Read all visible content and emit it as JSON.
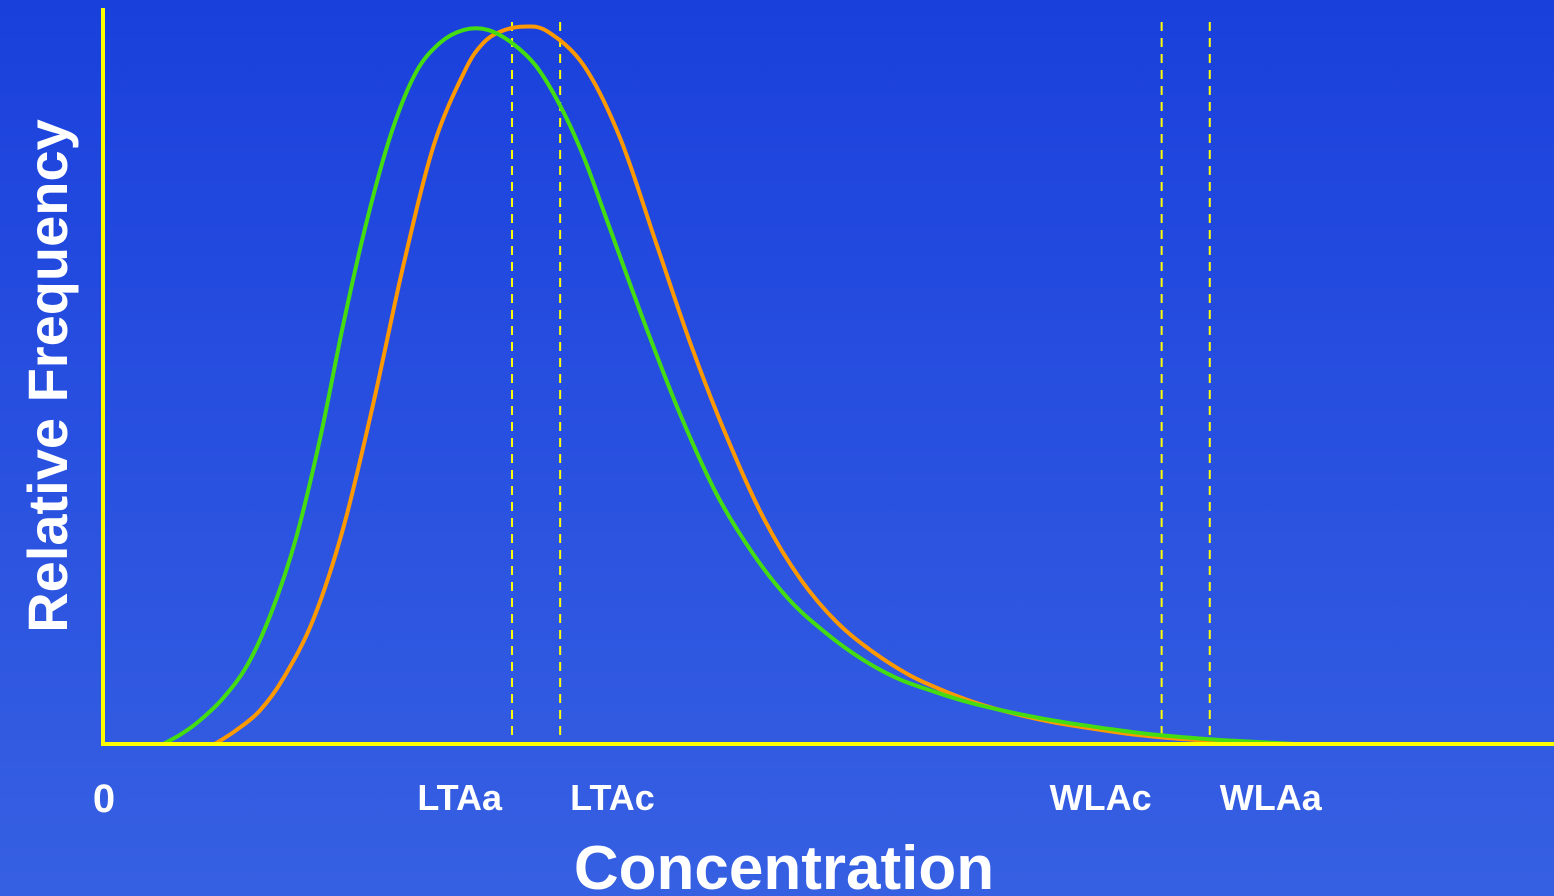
{
  "chart_data": {
    "type": "line",
    "title": "",
    "xlabel": "Concentration",
    "ylabel": "Relative Frequency",
    "x_origin_label": "0",
    "xlim": [
      0,
      100
    ],
    "ylim": [
      0,
      1.1
    ],
    "grid": false,
    "legend": "none",
    "axis_color": "#ffff00",
    "threshold_color": "#ffff00",
    "label_color": "#ffffff",
    "series": [
      {
        "color": "#ff9900",
        "x": [
          9.3,
          11.0,
          13.0,
          15.0,
          17.5,
          20.0,
          22.5,
          25.0,
          27.5,
          30.0,
          31.5,
          33.0,
          35.0,
          37.0,
          40.0,
          43.0,
          46.0,
          49.0,
          52.0,
          55.0,
          58.0,
          61.0,
          64.0,
          67.0,
          70.0,
          73.0,
          76.0,
          79.0,
          82.0,
          85.0,
          88.0,
          91.0,
          94.0,
          97.0
        ],
        "y": [
          0.0,
          0.02,
          0.05,
          0.1,
          0.19,
          0.33,
          0.52,
          0.73,
          0.91,
          1.02,
          1.063,
          1.082,
          1.09,
          1.082,
          1.03,
          0.92,
          0.76,
          0.6,
          0.46,
          0.34,
          0.25,
          0.185,
          0.14,
          0.105,
          0.08,
          0.06,
          0.045,
          0.033,
          0.024,
          0.016,
          0.01,
          0.006,
          0.003,
          0.001
        ]
      },
      {
        "color": "#44dd11",
        "x": [
          5.0,
          6.5,
          8.0,
          10.0,
          12.0,
          14.0,
          16.0,
          18.0,
          20.0,
          22.0,
          24.0,
          26.0,
          28.0,
          30.0,
          32.0,
          34.0,
          36.0,
          38.0,
          40.0,
          42.0,
          45.0,
          48.0,
          51.0,
          54.0,
          57.0,
          60.0,
          63.0,
          66.0,
          69.0,
          72.0,
          75.0,
          78.0,
          81.0,
          84.0,
          87.0,
          90.0,
          93.0,
          96.0,
          99.0
        ],
        "y": [
          0.0,
          0.015,
          0.035,
          0.07,
          0.12,
          0.2,
          0.31,
          0.46,
          0.64,
          0.8,
          0.93,
          1.02,
          1.065,
          1.085,
          1.085,
          1.065,
          1.03,
          0.97,
          0.89,
          0.79,
          0.64,
          0.5,
          0.38,
          0.29,
          0.22,
          0.17,
          0.13,
          0.1,
          0.08,
          0.063,
          0.05,
          0.039,
          0.03,
          0.022,
          0.015,
          0.01,
          0.006,
          0.003,
          0.0
        ]
      }
    ],
    "thresholds": [
      {
        "label": "LTAa",
        "x": 34.0
      },
      {
        "label": "LTAc",
        "x": 38.0
      },
      {
        "label": "WLAc",
        "x": 88.0
      },
      {
        "label": "WLAa",
        "x": 92.0
      }
    ]
  }
}
